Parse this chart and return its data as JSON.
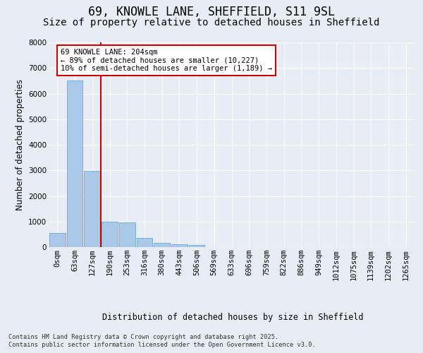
{
  "title_line1": "69, KNOWLE LANE, SHEFFIELD, S11 9SL",
  "title_line2": "Size of property relative to detached houses in Sheffield",
  "xlabel": "Distribution of detached houses by size in Sheffield",
  "ylabel": "Number of detached properties",
  "bar_labels": [
    "0sqm",
    "63sqm",
    "127sqm",
    "190sqm",
    "253sqm",
    "316sqm",
    "380sqm",
    "443sqm",
    "506sqm",
    "569sqm",
    "633sqm",
    "696sqm",
    "759sqm",
    "822sqm",
    "886sqm",
    "949sqm",
    "1012sqm",
    "1075sqm",
    "1139sqm",
    "1202sqm",
    "1265sqm"
  ],
  "bar_values": [
    550,
    6500,
    2980,
    1000,
    970,
    350,
    165,
    110,
    80,
    0,
    0,
    0,
    0,
    0,
    0,
    0,
    0,
    0,
    0,
    0,
    0
  ],
  "bar_color": "#aac9e8",
  "bar_edgecolor": "#6aaad4",
  "vline_color": "#cc0000",
  "annotation_text": "69 KNOWLE LANE: 204sqm\n← 89% of detached houses are smaller (10,227)\n10% of semi-detached houses are larger (1,189) →",
  "annotation_box_color": "#cc0000",
  "ylim": [
    0,
    8000
  ],
  "yticks": [
    0,
    1000,
    2000,
    3000,
    4000,
    5000,
    6000,
    7000,
    8000
  ],
  "background_color": "#e8edf5",
  "plot_bg_color": "#e8edf5",
  "footer_line1": "Contains HM Land Registry data © Crown copyright and database right 2025.",
  "footer_line2": "Contains public sector information licensed under the Open Government Licence v3.0.",
  "grid_color": "#ffffff",
  "title_fontsize": 12,
  "subtitle_fontsize": 10,
  "axis_label_fontsize": 8.5,
  "tick_fontsize": 7.5,
  "annotation_fontsize": 7.5
}
